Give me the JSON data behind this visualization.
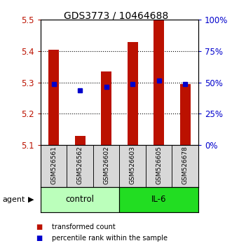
{
  "title": "GDS3773 / 10464688",
  "samples": [
    "GSM526561",
    "GSM526562",
    "GSM526602",
    "GSM526603",
    "GSM526605",
    "GSM526678"
  ],
  "red_values": [
    5.405,
    5.13,
    5.335,
    5.43,
    5.5,
    5.295
  ],
  "blue_values": [
    5.295,
    5.275,
    5.285,
    5.295,
    5.305,
    5.295
  ],
  "y_min": 5.1,
  "y_max": 5.5,
  "y_ticks": [
    5.1,
    5.2,
    5.3,
    5.4,
    5.5
  ],
  "right_ticks": [
    0,
    25,
    50,
    75,
    100
  ],
  "right_tick_labels": [
    "0%",
    "25%",
    "50%",
    "75%",
    "100%"
  ],
  "bar_width": 0.4,
  "red_color": "#bb1100",
  "blue_color": "#0000cc",
  "control_color": "#bbffbb",
  "il6_color": "#22dd22",
  "sample_bg_color": "#d8d8d8",
  "legend_red": "transformed count",
  "legend_blue": "percentile rank within the sample",
  "group_label": "agent"
}
